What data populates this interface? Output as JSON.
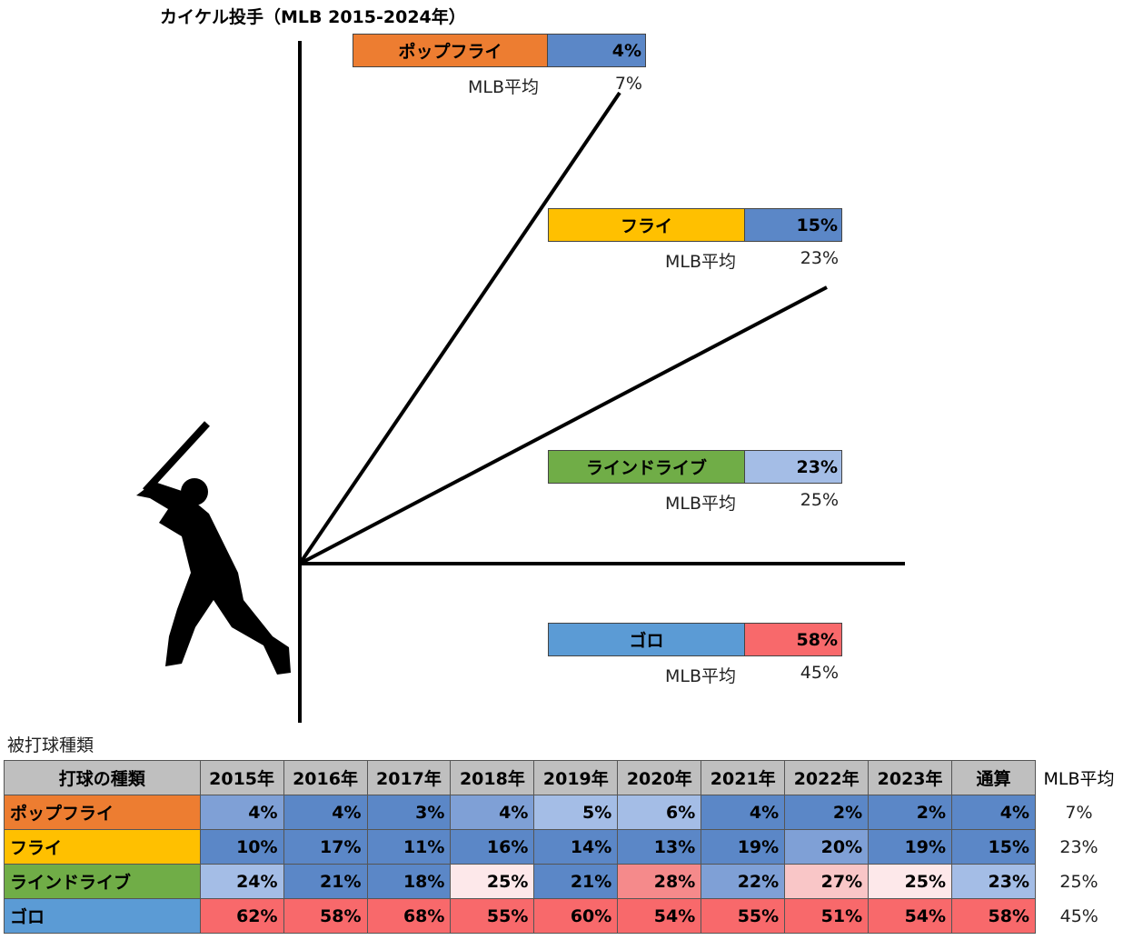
{
  "title": "カイケル投手（MLB 2015-2024年）",
  "boxes": [
    {
      "label": "ポップフライ",
      "value": "4%",
      "avg_label": "MLB平均",
      "avg": "7%"
    },
    {
      "label": "フライ",
      "value": "15%",
      "avg_label": "MLB平均",
      "avg": "23%"
    },
    {
      "label": "ラインドライブ",
      "value": "23%",
      "avg_label": "MLB平均",
      "avg": "25%"
    },
    {
      "label": "ゴロ",
      "value": "58%",
      "avg_label": "MLB平均",
      "avg": "45%"
    }
  ],
  "table": {
    "caption": "被打球種類",
    "header": [
      "打球の種類",
      "2015年",
      "2016年",
      "2017年",
      "2018年",
      "2019年",
      "2020年",
      "2021年",
      "2022年",
      "2023年",
      "通算",
      "MLB平均"
    ],
    "rows": [
      [
        "ポップフライ",
        "4%",
        "4%",
        "3%",
        "4%",
        "5%",
        "6%",
        "4%",
        "2%",
        "2%",
        "4%",
        "7%"
      ],
      [
        "フライ",
        "10%",
        "17%",
        "11%",
        "16%",
        "14%",
        "13%",
        "19%",
        "20%",
        "19%",
        "15%",
        "23%"
      ],
      [
        "ラインドライブ",
        "24%",
        "21%",
        "18%",
        "25%",
        "21%",
        "28%",
        "22%",
        "27%",
        "25%",
        "23%",
        "25%"
      ],
      [
        "ゴロ",
        "62%",
        "58%",
        "68%",
        "55%",
        "60%",
        "54%",
        "55%",
        "51%",
        "54%",
        "58%",
        "45%"
      ]
    ]
  }
}
